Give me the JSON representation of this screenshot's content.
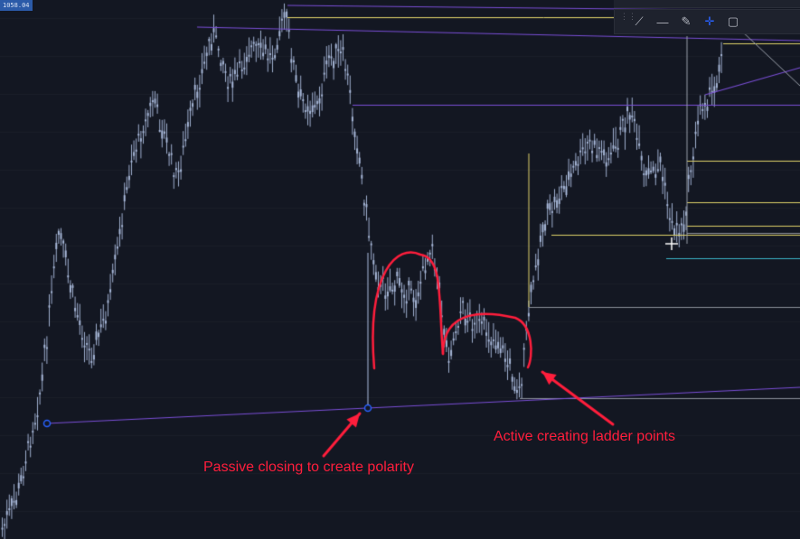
{
  "price_tag": "1058.04",
  "toolbar": {
    "tools": [
      {
        "name": "trend-line-tool",
        "glyph": "⟋"
      },
      {
        "name": "horizontal-line-tool",
        "glyph": "—"
      },
      {
        "name": "brush-tool",
        "glyph": "✎"
      },
      {
        "name": "crosshair-tool",
        "glyph": "✛"
      },
      {
        "name": "rectangle-tool",
        "glyph": "▢"
      }
    ]
  },
  "annotations": {
    "passive": "Passive closing to create polarity",
    "active": "Active creating ladder points"
  },
  "colors": {
    "background": "#131722",
    "candle": "#aebfe0",
    "annotation": "#ff1e3c",
    "trendline": "#7b4fd8",
    "level_yellow": "#e0d36a",
    "level_gray": "#8a8f99",
    "level_cyan": "#3bb5c8"
  }
}
